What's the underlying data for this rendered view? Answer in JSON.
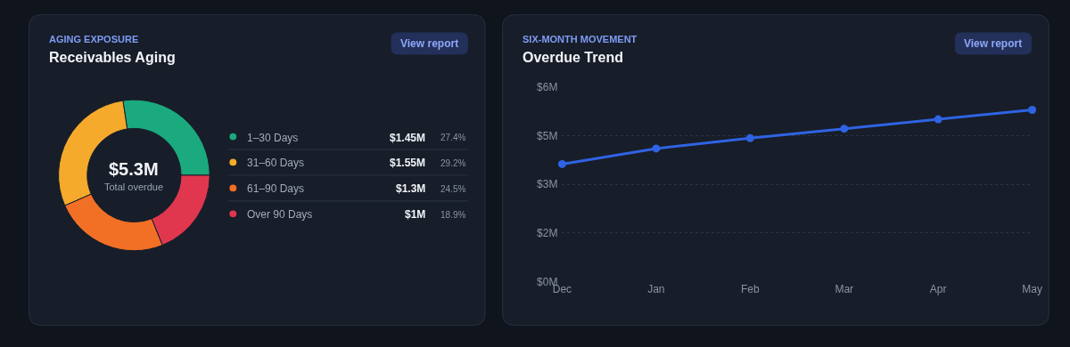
{
  "chart_data": [
    {
      "type": "donut",
      "subtitle": "AGING EXPOSURE",
      "title": "Receivables Aging",
      "categories": [
        "1–30 Days",
        "31–60 Days",
        "61–90 Days",
        "Over 90 Days"
      ],
      "values": [
        1.45,
        1.55,
        1.3,
        1.0
      ],
      "value_labels": [
        "$1.45M",
        "$1.55M",
        "$1.3M",
        "$1M"
      ],
      "colors": [
        "#1aaa7e",
        "#f5aa2c",
        "#f26f26",
        "#e0374f"
      ],
      "legend": "right",
      "annotations": [
        "$5.3M",
        "Total overdue",
        "27.4%",
        "29.2%",
        "24.5%",
        "18.9%",
        "View report"
      ]
    },
    {
      "type": "line",
      "subtitle": "SIX-MONTH MOVEMENT",
      "title": "Overdue Trend",
      "categories": [
        "Dec",
        "Jan",
        "Feb",
        "Mar",
        "Apr",
        "May"
      ],
      "series": [
        {
          "color": "#2f63e3",
          "values": [
            3.62,
            4.1,
            4.42,
            4.71,
            5.0,
            5.29
          ]
        }
      ],
      "ylim": [
        0,
        6
      ],
      "yticks": [
        {
          "value": 0,
          "label": "$0M"
        },
        {
          "value": 1.5,
          "label": "$2M"
        },
        {
          "value": 3,
          "label": "$3M"
        },
        {
          "value": 4.5,
          "label": "$5M"
        },
        {
          "value": 6,
          "label": "$6M"
        }
      ],
      "grid": "y",
      "marker": "circle",
      "line_style": "solid",
      "annotations": [
        "View report"
      ]
    }
  ]
}
